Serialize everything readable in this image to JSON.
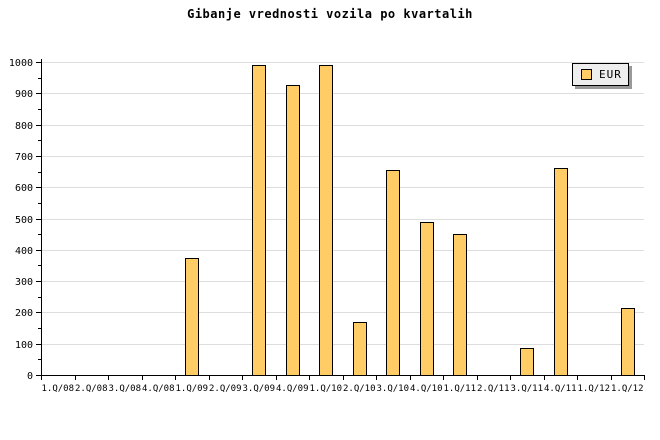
{
  "chart_data": {
    "type": "bar",
    "title": "Gibanje vrednosti vozila po kvartalih",
    "categories": [
      "1.Q/08",
      "2.Q/08",
      "3.Q/08",
      "4.Q/08",
      "1.Q/09",
      "2.Q/09",
      "3.Q/09",
      "4.Q/09",
      "1.Q/10",
      "2.Q/10",
      "3.Q/10",
      "4.Q/10",
      "1.Q/11",
      "2.Q/11",
      "3.Q/11",
      "4.Q/11",
      "1.Q/12",
      "1.Q/12"
    ],
    "series": [
      {
        "name": "EUR",
        "values": [
          0,
          0,
          0,
          0,
          375,
          0,
          990,
          925,
          990,
          170,
          655,
          490,
          450,
          0,
          85,
          660,
          0,
          215
        ]
      }
    ],
    "xlabel": "",
    "ylabel": "",
    "ylim": [
      0,
      1000
    ],
    "ytick_step": 100,
    "ytick_minor_step": 50,
    "ytick_labels": [
      "0",
      "100",
      "200",
      "300",
      "400",
      "500",
      "600",
      "700",
      "800",
      "900",
      "1000"
    ],
    "grid": "horizontal-major",
    "legend": {
      "position": "top-right",
      "entries": [
        {
          "label": "EUR",
          "color": "#FFCC66"
        }
      ]
    }
  },
  "colors": {
    "background": "#FFFFFF",
    "bar_fill": "#FFCC66",
    "bar_border": "#000000",
    "gridline": "#DDDDDD",
    "axis": "#000000",
    "text": "#000000",
    "legend_bg": "#EEEEEE",
    "legend_border": "#000000",
    "legend_shadow": "#999999"
  }
}
